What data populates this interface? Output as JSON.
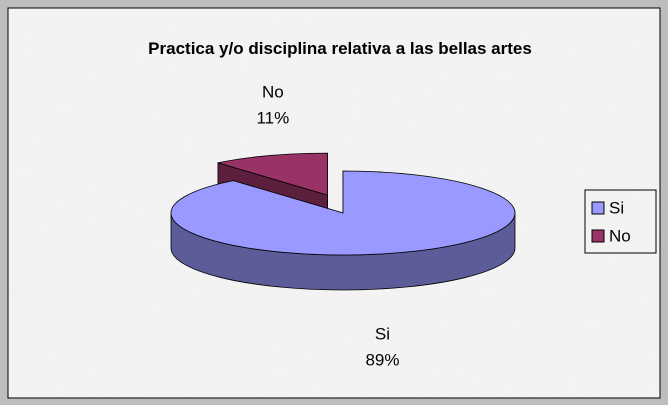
{
  "chart_data": {
    "type": "pie3d",
    "title": "Practica y/o disciplina relativa a las bellas artes",
    "categories": [
      "Si",
      "No"
    ],
    "values": [
      89,
      11
    ],
    "value_labels": [
      "89%",
      "11%"
    ],
    "colors": [
      "#9999ff",
      "#993366"
    ],
    "legend": "right"
  }
}
